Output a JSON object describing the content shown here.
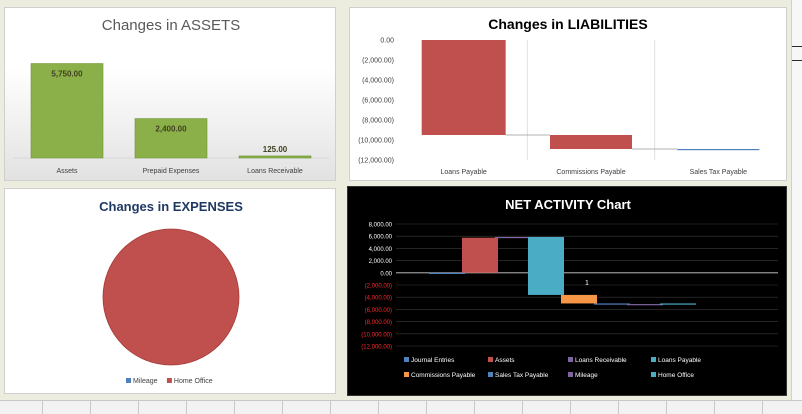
{
  "charts": [
    {
      "type": "bar",
      "title": "Changes in ASSETS",
      "categories": [
        "Assets",
        "Prepaid Expenses",
        "Loans Receivable"
      ],
      "values": [
        5750,
        2400,
        125
      ],
      "value_labels": [
        "5,750.00",
        "2,400.00",
        "125.00"
      ],
      "ylim": [
        0,
        7000
      ],
      "grid": false,
      "colors": {
        "bar": "#8bb04a",
        "title": "#595959"
      }
    },
    {
      "type": "bar",
      "variant": "waterfall",
      "title": "Changes in LIABILITIES",
      "categories": [
        "Loans Payable",
        "Commissions Payable",
        "Sales Tax Payable"
      ],
      "values": [
        -9500,
        -1400,
        -100
      ],
      "ylim": [
        -12000,
        0
      ],
      "y_ticks": [
        0,
        -2000,
        -4000,
        -6000,
        -8000,
        -10000,
        -12000
      ],
      "y_tick_labels": [
        "0.00",
        "(2,000.00)",
        "(4,000.00)",
        "(6,000.00)",
        "(8,000.00)",
        "(10,000.00)",
        "(12,000.00)"
      ],
      "grid": false,
      "colors": {
        "bar": "#c0504d",
        "small_bar": "#4f81bd",
        "title": "#000000"
      }
    },
    {
      "type": "pie",
      "title": "Changes in EXPENSES",
      "slices": [
        {
          "name": "Mileage",
          "value": 0,
          "color": "#4f81bd"
        },
        {
          "name": "Home Office",
          "value": 100,
          "color": "#c0504d"
        }
      ],
      "legend": "bottom",
      "colors": {
        "title": "#1f3864"
      }
    },
    {
      "type": "bar",
      "title": "NET ACTIVITY Chart",
      "categories": [
        "Journal Entries",
        "Assets",
        "Loans Receivable",
        "Loans Payable",
        "Commissions Payable",
        "Sales Tax Payable",
        "Mileage",
        "Home Office"
      ],
      "series": [
        {
          "name": "Journal Entries",
          "values": [
            0
          ],
          "color": "#4f81bd"
        },
        {
          "name": "Assets",
          "values": [
            5750
          ],
          "color": "#c0504d"
        },
        {
          "name": "Loans Receivable",
          "values": [
            125
          ],
          "color": "#8064a2"
        },
        {
          "name": "Loans Payable",
          "values": [
            -9500
          ],
          "color": "#4bacc6"
        },
        {
          "name": "Commissions Payable",
          "values": [
            -1400
          ],
          "color": "#f79646"
        },
        {
          "name": "Sales Tax Payable",
          "values": [
            -100
          ],
          "color": "#4f81bd"
        },
        {
          "name": "Mileage",
          "values": [
            0
          ],
          "color": "#8064a2"
        },
        {
          "name": "Home Office",
          "values": [
            100
          ],
          "color": "#4bacc6"
        }
      ],
      "annotation": "1",
      "ylim": [
        -12000,
        8000
      ],
      "y_ticks": [
        8000,
        6000,
        4000,
        2000,
        0,
        -2000,
        -4000,
        -6000,
        -8000,
        -10000,
        -12000
      ],
      "y_tick_labels": [
        "8,000.00",
        "6,000.00",
        "4,000.00",
        "2,000.00",
        "0.00",
        "(2,000.00)",
        "(4,000.00)",
        "(6,000.00)",
        "(8,000.00)",
        "(10,000.00)",
        "(12,000.00)"
      ],
      "grid": true,
      "legend": "bottom",
      "colors": {
        "background": "#000000",
        "text": "#ffffff",
        "negative_tick": "#ff2a2a"
      }
    }
  ]
}
